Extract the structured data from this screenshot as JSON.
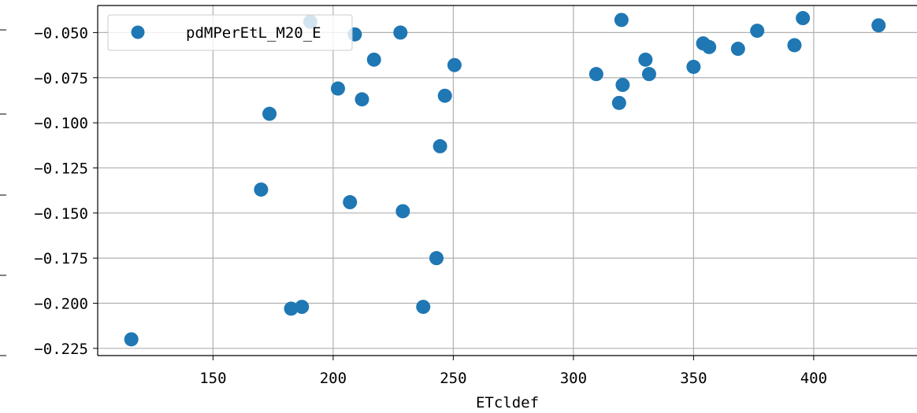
{
  "chart_data": {
    "type": "scatter",
    "title": "",
    "xlabel": "ETcldef",
    "ylabel": "",
    "xlim": [
      102,
      443
    ],
    "ylim": [
      -0.229,
      -0.035
    ],
    "xticks": [
      150,
      200,
      250,
      300,
      350,
      400
    ],
    "yticks": [
      -0.05,
      -0.075,
      -0.1,
      -0.125,
      -0.15,
      -0.175,
      -0.2,
      -0.225
    ],
    "ytick_labels": [
      "−0.050",
      "−0.075",
      "−0.100",
      "−0.125",
      "−0.150",
      "−0.175",
      "−0.200",
      "−0.225"
    ],
    "xtick_labels": [
      "150",
      "200",
      "250",
      "300",
      "350",
      "400"
    ],
    "grid": true,
    "legend": "top-left",
    "series": [
      {
        "name": "pdMPerEtL_M20_E",
        "color": "#1f77b4",
        "x": [
          116,
          170,
          173.5,
          182.5,
          187,
          190.5,
          202,
          207,
          209,
          212,
          217,
          228,
          229,
          237.5,
          243,
          244.5,
          246.5,
          250.5,
          309.5,
          319,
          320,
          320.5,
          330,
          331.5,
          350,
          354,
          356.5,
          368.5,
          376.5,
          392,
          395.5,
          427
        ],
        "y": [
          -0.22,
          -0.137,
          -0.095,
          -0.203,
          -0.202,
          -0.044,
          -0.081,
          -0.144,
          -0.051,
          -0.087,
          -0.065,
          -0.05,
          -0.149,
          -0.202,
          -0.175,
          -0.113,
          -0.085,
          -0.068,
          -0.073,
          -0.089,
          -0.043,
          -0.079,
          -0.065,
          -0.073,
          -0.069,
          -0.056,
          -0.058,
          -0.059,
          -0.049,
          -0.057,
          -0.042,
          -0.046
        ]
      }
    ]
  }
}
